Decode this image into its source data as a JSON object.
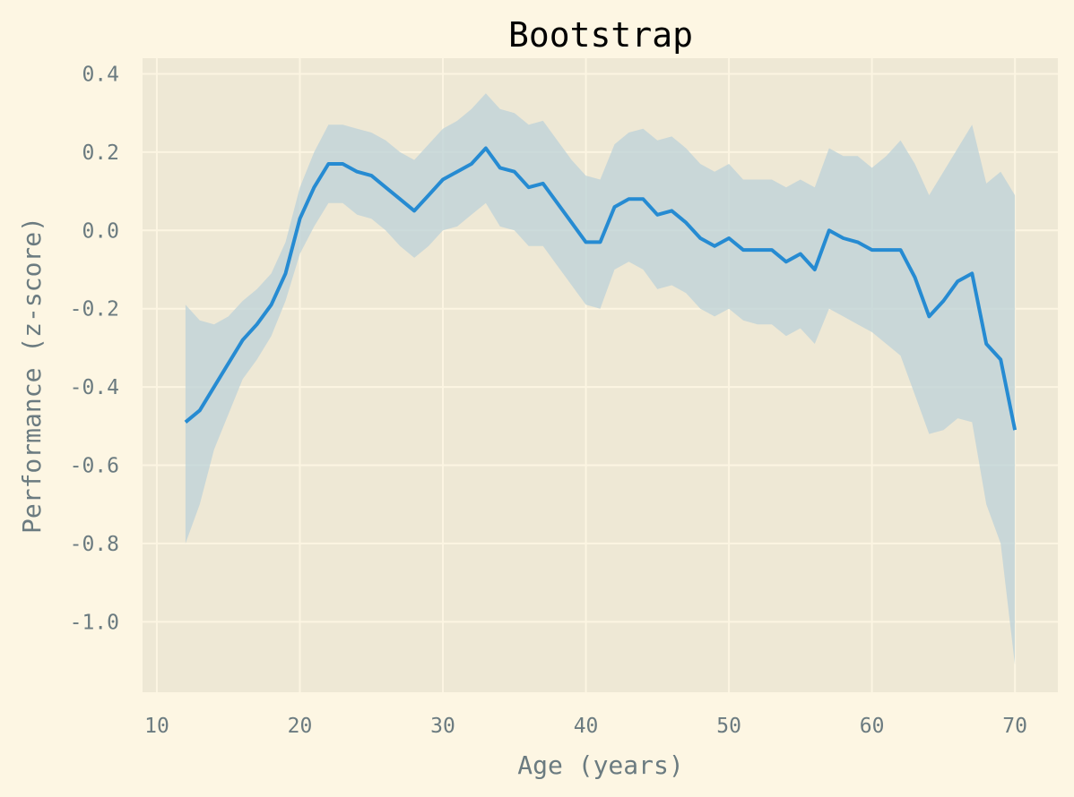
{
  "chart_data": {
    "type": "line",
    "title": "Bootstrap",
    "xlabel": "Age (years)",
    "ylabel": "Performance (z-score)",
    "xlim": [
      9,
      73
    ],
    "ylim": [
      -1.18,
      0.44
    ],
    "xticks": [
      10,
      20,
      30,
      40,
      50,
      60,
      70
    ],
    "yticks": [
      0.4,
      0.2,
      0.0,
      -0.2,
      -0.4,
      -0.6,
      -0.8,
      -1.0
    ],
    "ytick_labels": [
      "0.4",
      "0.2",
      "0.0",
      "-0.2",
      "-0.4",
      "-0.6",
      "-0.8",
      "-1.0"
    ],
    "grid": true,
    "colors": {
      "background": "#fdf6e3",
      "plot_area": "#eee8d5",
      "line": "#268bd2",
      "band": "#bcd2d8"
    },
    "x": [
      12,
      13,
      14,
      15,
      16,
      17,
      18,
      19,
      20,
      21,
      22,
      23,
      24,
      25,
      26,
      27,
      28,
      29,
      30,
      31,
      32,
      33,
      34,
      35,
      36,
      37,
      38,
      39,
      40,
      41,
      42,
      43,
      44,
      45,
      46,
      47,
      48,
      49,
      50,
      51,
      52,
      53,
      54,
      55,
      56,
      57,
      58,
      59,
      60,
      61,
      62,
      63,
      64,
      65,
      66,
      67,
      68,
      69,
      70
    ],
    "series": [
      {
        "values": [
          -0.49,
          -0.46,
          -0.4,
          -0.34,
          -0.28,
          -0.24,
          -0.19,
          -0.11,
          0.03,
          0.11,
          0.17,
          0.17,
          0.15,
          0.14,
          0.11,
          0.08,
          0.05,
          0.09,
          0.13,
          0.15,
          0.17,
          0.21,
          0.16,
          0.15,
          0.11,
          0.12,
          0.07,
          0.02,
          -0.03,
          -0.03,
          0.06,
          0.08,
          0.08,
          0.04,
          0.05,
          0.02,
          -0.02,
          -0.04,
          -0.02,
          -0.05,
          -0.05,
          -0.05,
          -0.08,
          -0.06,
          -0.1,
          0.0,
          -0.02,
          -0.03,
          -0.05,
          -0.05,
          -0.05,
          -0.12,
          -0.22,
          -0.18,
          -0.13,
          -0.11,
          -0.29,
          -0.33,
          -0.51
        ],
        "lower": [
          -0.8,
          -0.7,
          -0.56,
          -0.47,
          -0.38,
          -0.33,
          -0.27,
          -0.18,
          -0.06,
          0.01,
          0.07,
          0.07,
          0.04,
          0.03,
          0.0,
          -0.04,
          -0.07,
          -0.04,
          0.0,
          0.01,
          0.04,
          0.07,
          0.01,
          0.0,
          -0.04,
          -0.04,
          -0.09,
          -0.14,
          -0.19,
          -0.2,
          -0.1,
          -0.08,
          -0.1,
          -0.15,
          -0.14,
          -0.16,
          -0.2,
          -0.22,
          -0.2,
          -0.23,
          -0.24,
          -0.24,
          -0.27,
          -0.25,
          -0.29,
          -0.2,
          -0.22,
          -0.24,
          -0.26,
          -0.29,
          -0.32,
          -0.42,
          -0.52,
          -0.51,
          -0.48,
          -0.49,
          -0.7,
          -0.8,
          -1.11
        ],
        "upper": [
          -0.19,
          -0.23,
          -0.24,
          -0.22,
          -0.18,
          -0.15,
          -0.11,
          -0.03,
          0.11,
          0.2,
          0.27,
          0.27,
          0.26,
          0.25,
          0.23,
          0.2,
          0.18,
          0.22,
          0.26,
          0.28,
          0.31,
          0.35,
          0.31,
          0.3,
          0.27,
          0.28,
          0.23,
          0.18,
          0.14,
          0.13,
          0.22,
          0.25,
          0.26,
          0.23,
          0.24,
          0.21,
          0.17,
          0.15,
          0.17,
          0.13,
          0.13,
          0.13,
          0.11,
          0.13,
          0.11,
          0.21,
          0.19,
          0.19,
          0.16,
          0.19,
          0.23,
          0.17,
          0.09,
          0.15,
          0.21,
          0.27,
          0.12,
          0.15,
          0.09
        ]
      }
    ]
  }
}
